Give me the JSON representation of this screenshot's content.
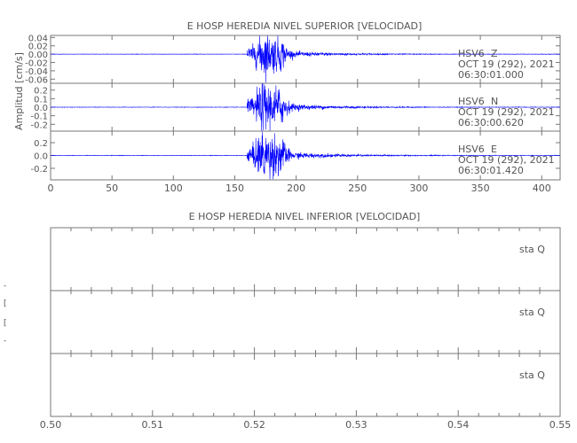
{
  "chart_data": [
    {
      "type": "line",
      "title": "E HOSP HEREDIA NIVEL SUPERIOR [VELOCIDAD]",
      "ylabel": "Amplitud [cm/s]",
      "xlim": [
        0,
        415
      ],
      "x_ticks": [
        "0",
        "50",
        "100",
        "150",
        "200",
        "250",
        "300",
        "350",
        "400"
      ],
      "line_color": "#0000ff",
      "panels": [
        {
          "station": "HSV6",
          "component": "Z",
          "date": "OCT 19 (292), 2021",
          "time": "06:30:01.000",
          "ylim": [
            -0.07,
            0.045
          ],
          "y_ticks": [
            "0.04",
            "0.02",
            "0.00",
            "-0.02",
            "-0.04",
            "-0.06"
          ],
          "event_onset": 160,
          "peak_amplitude": 0.045
        },
        {
          "station": "HSV6",
          "component": "N",
          "date": "OCT 19 (292), 2021",
          "time": "06:30:00.620",
          "ylim": [
            -0.28,
            0.28
          ],
          "y_ticks": [
            "0.2",
            "0.1",
            "0.0",
            "-0.1",
            "-0.2"
          ],
          "event_onset": 160,
          "peak_amplitude": 0.25
        },
        {
          "station": "HSV6",
          "component": "E",
          "date": "OCT 19 (292), 2021",
          "time": "06:30:01.420",
          "ylim": [
            -0.38,
            0.38
          ],
          "y_ticks": [
            "0.2",
            "0.0",
            "-0.2"
          ],
          "event_onset": 160,
          "peak_amplitude": 0.35
        }
      ]
    },
    {
      "type": "line",
      "title": "E HOSP HEREDIA NIVEL INFERIOR [VELOCIDAD]",
      "xlim": [
        0.5,
        0.55
      ],
      "x_ticks": [
        "0.50",
        "0.51",
        "0.52",
        "0.53",
        "0.54",
        "0.55"
      ],
      "panels": [
        {
          "label": "sta  Q"
        },
        {
          "label": "sta  Q"
        },
        {
          "label": "sta  Q"
        }
      ],
      "ylabel_fragments": [
        "-",
        "[",
        "[",
        "-"
      ]
    }
  ]
}
